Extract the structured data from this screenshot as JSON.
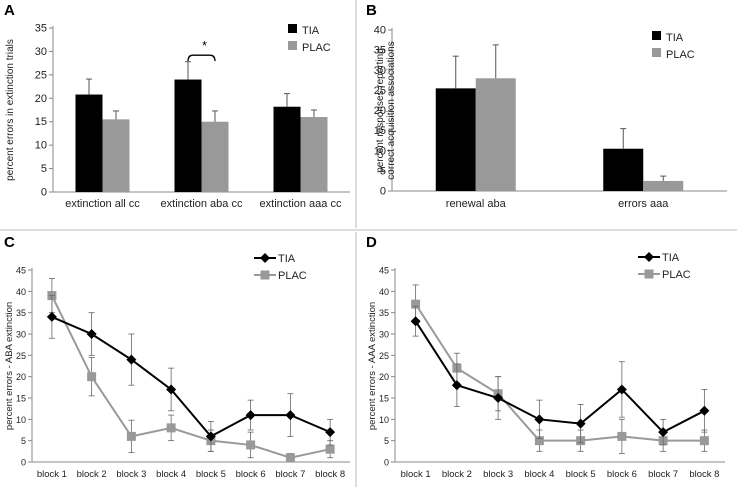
{
  "panels": {
    "A": {
      "letter": "A"
    },
    "B": {
      "letter": "B"
    },
    "C": {
      "letter": "C"
    },
    "D": {
      "letter": "D"
    }
  },
  "chart_data": [
    {
      "panel": "A",
      "type": "bar",
      "categories": [
        "extinction all cc",
        "extinction aba cc",
        "extinction aaa cc"
      ],
      "series": [
        {
          "name": "TIA",
          "color": "#000000",
          "values": [
            20.8,
            24.0,
            18.2
          ],
          "errors": [
            3.3,
            3.8,
            2.8
          ]
        },
        {
          "name": "PLAC",
          "color": "#999999",
          "values": [
            15.5,
            15.0,
            16.0
          ],
          "errors": [
            1.8,
            2.3,
            1.5
          ]
        }
      ],
      "ylabel": "percent errors  in extinction trials",
      "ylim": [
        0,
        35
      ],
      "yticks": [
        0,
        5,
        10,
        15,
        20,
        25,
        30,
        35
      ],
      "annotation": {
        "text": "*",
        "category_index": 1
      },
      "legend": "top-right"
    },
    {
      "panel": "B",
      "type": "bar",
      "categories": [
        "renewal aba",
        "errors aaa"
      ],
      "series": [
        {
          "name": "TIA",
          "color": "#000000",
          "values": [
            25.5,
            10.5
          ],
          "errors": [
            8.0,
            5.0
          ]
        },
        {
          "name": "PLAC",
          "color": "#999999",
          "values": [
            28.0,
            2.5
          ],
          "errors": [
            8.3,
            1.2
          ]
        }
      ],
      "ylabel": [
        "percent responses reporting",
        "correct acquisition associations"
      ],
      "ylim": [
        0,
        40
      ],
      "yticks": [
        0,
        5,
        10,
        15,
        20,
        25,
        30,
        35,
        40
      ],
      "legend": "top-right"
    },
    {
      "panel": "C",
      "type": "line",
      "categories": [
        "block 1",
        "block 2",
        "block 3",
        "block 4",
        "block 5",
        "block 6",
        "block 7",
        "block 8"
      ],
      "series": [
        {
          "name": "TIA",
          "color": "#000000",
          "marker": "diamond",
          "values": [
            34,
            30,
            24,
            17,
            6,
            11,
            11,
            7
          ],
          "errors": [
            5,
            5,
            6,
            5,
            3.5,
            3.5,
            5,
            3
          ]
        },
        {
          "name": "PLAC",
          "color": "#999999",
          "marker": "square",
          "values": [
            39,
            20,
            6,
            8,
            5,
            4,
            1,
            3
          ],
          "errors": [
            4,
            4.5,
            3.8,
            3,
            2.5,
            3,
            1,
            2
          ]
        }
      ],
      "ylabel": "percent errors  -   ABA extinction",
      "ylim": [
        0,
        45
      ],
      "yticks": [
        0,
        5,
        10,
        15,
        20,
        25,
        30,
        35,
        40,
        45
      ],
      "legend": "top-right"
    },
    {
      "panel": "D",
      "type": "line",
      "categories": [
        "block 1",
        "block 2",
        "block 3",
        "block 4",
        "block 5",
        "block 6",
        "block 7",
        "block 8"
      ],
      "series": [
        {
          "name": "TIA",
          "color": "#000000",
          "marker": "diamond",
          "values": [
            33,
            18,
            15,
            10,
            9,
            17,
            7,
            12
          ],
          "errors": [
            3.5,
            5,
            5,
            4.5,
            4.5,
            6.5,
            3,
            5
          ]
        },
        {
          "name": "PLAC",
          "color": "#999999",
          "marker": "square",
          "values": [
            37,
            22,
            16,
            5,
            5,
            6,
            5,
            5
          ],
          "errors": [
            4.5,
            3.5,
            4,
            2.5,
            2.5,
            4,
            2.5,
            2.5
          ]
        }
      ],
      "ylabel": "percent errors  -   AAA extinction",
      "ylim": [
        0,
        45
      ],
      "yticks": [
        0,
        5,
        10,
        15,
        20,
        25,
        30,
        35,
        40,
        45
      ],
      "legend": "top-right"
    }
  ]
}
